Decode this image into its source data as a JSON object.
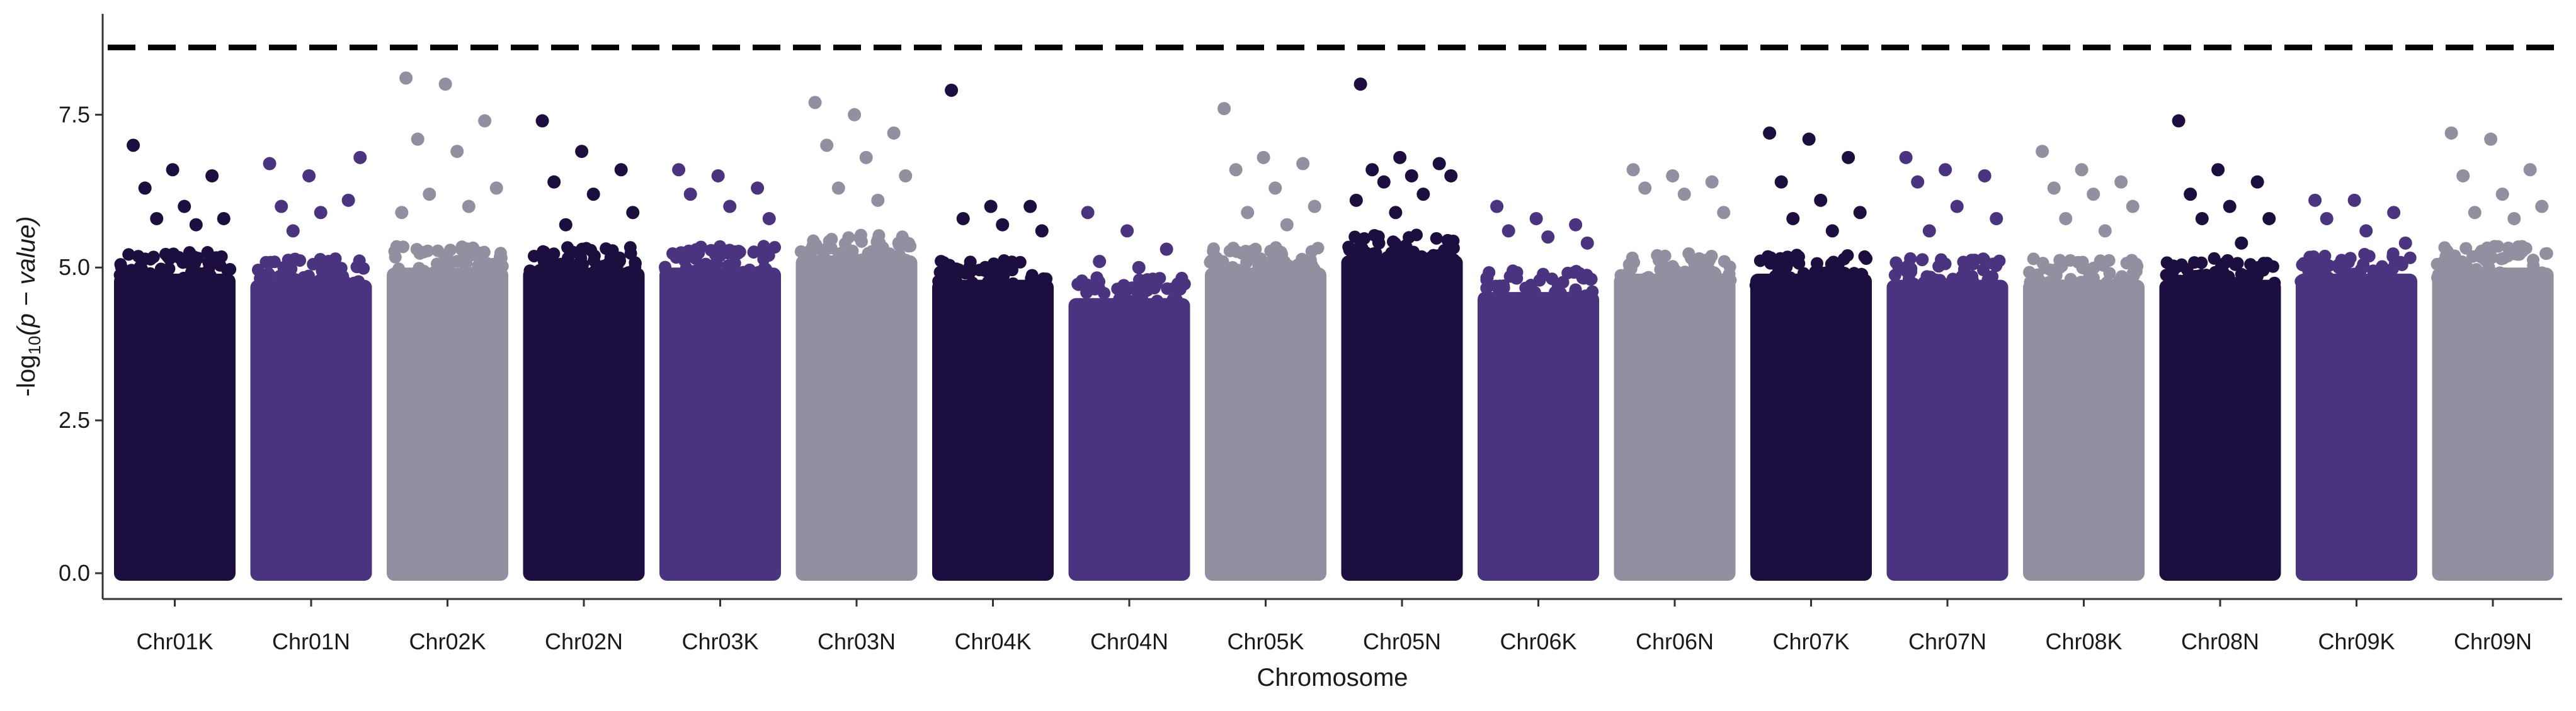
{
  "chart_data": {
    "type": "scatter",
    "subtype": "manhattan",
    "xlabel": "Chromosome",
    "ylabel_prefix": "-log",
    "ylabel_sub": "10",
    "ylabel_body": "(p − value)",
    "ylim": [
      0,
      8.8
    ],
    "yticks": [
      0.0,
      2.5,
      5.0,
      7.5
    ],
    "ytick_labels": [
      "0.0",
      "2.5",
      "5.0",
      "7.5"
    ],
    "threshold": 8.6,
    "threshold_style": "dashed",
    "grid": false,
    "legend": "none",
    "colors": [
      "#1c0e3f",
      "#4a3480",
      "#938fa0"
    ],
    "chromosomes": [
      {
        "name": "Chr01K",
        "color_index": 0,
        "top_points": [
          7.0,
          6.6,
          6.5,
          6.3,
          6.0,
          5.8,
          5.8,
          5.7
        ],
        "envelope": 4.9
      },
      {
        "name": "Chr01N",
        "color_index": 1,
        "top_points": [
          6.7,
          6.5,
          6.1,
          6.0,
          5.9,
          6.8,
          5.6
        ],
        "envelope": 4.8
      },
      {
        "name": "Chr02K",
        "color_index": 2,
        "top_points": [
          8.1,
          8.0,
          7.4,
          7.1,
          6.9,
          6.3,
          6.2,
          6.0,
          5.9
        ],
        "envelope": 5.0
      },
      {
        "name": "Chr02N",
        "color_index": 0,
        "top_points": [
          7.4,
          6.9,
          6.6,
          6.4,
          6.2,
          5.9,
          5.7
        ],
        "envelope": 5.0
      },
      {
        "name": "Chr03K",
        "color_index": 1,
        "top_points": [
          6.6,
          6.5,
          6.3,
          6.2,
          6.0,
          5.8
        ],
        "envelope": 5.0
      },
      {
        "name": "Chr03N",
        "color_index": 2,
        "top_points": [
          7.7,
          7.5,
          7.2,
          7.0,
          6.8,
          6.5,
          6.3,
          6.1
        ],
        "envelope": 5.2
      },
      {
        "name": "Chr04K",
        "color_index": 0,
        "top_points": [
          7.9,
          6.0,
          6.0,
          5.8,
          5.7,
          5.6
        ],
        "envelope": 4.8
      },
      {
        "name": "Chr04N",
        "color_index": 1,
        "top_points": [
          5.9,
          5.6,
          5.3,
          5.1,
          5.0
        ],
        "envelope": 4.5
      },
      {
        "name": "Chr05K",
        "color_index": 2,
        "top_points": [
          7.6,
          6.8,
          6.7,
          6.6,
          6.3,
          6.0,
          5.9,
          5.7
        ],
        "envelope": 5.0
      },
      {
        "name": "Chr05N",
        "color_index": 0,
        "top_points": [
          8.0,
          6.8,
          6.7,
          6.6,
          6.5,
          6.5,
          6.4,
          6.2,
          6.1,
          5.9
        ],
        "envelope": 5.2
      },
      {
        "name": "Chr06K",
        "color_index": 1,
        "top_points": [
          6.0,
          5.8,
          5.7,
          5.6,
          5.5,
          5.4
        ],
        "envelope": 4.6
      },
      {
        "name": "Chr06N",
        "color_index": 2,
        "top_points": [
          6.6,
          6.5,
          6.4,
          6.3,
          6.2,
          5.9
        ],
        "envelope": 4.9
      },
      {
        "name": "Chr07K",
        "color_index": 0,
        "top_points": [
          7.2,
          7.1,
          6.8,
          6.4,
          6.1,
          5.9,
          5.8,
          5.6
        ],
        "envelope": 4.9
      },
      {
        "name": "Chr07N",
        "color_index": 1,
        "top_points": [
          6.8,
          6.6,
          6.5,
          6.4,
          6.0,
          5.8,
          5.6
        ],
        "envelope": 4.8
      },
      {
        "name": "Chr08K",
        "color_index": 2,
        "top_points": [
          6.9,
          6.6,
          6.4,
          6.3,
          6.2,
          6.0,
          5.8,
          5.6
        ],
        "envelope": 4.8
      },
      {
        "name": "Chr08N",
        "color_index": 0,
        "top_points": [
          7.4,
          6.6,
          6.4,
          6.2,
          6.0,
          5.8,
          5.8,
          5.4
        ],
        "envelope": 4.8
      },
      {
        "name": "Chr09K",
        "color_index": 1,
        "top_points": [
          6.1,
          6.1,
          5.9,
          5.8,
          5.6,
          5.4
        ],
        "envelope": 4.9
      },
      {
        "name": "Chr09N",
        "color_index": 2,
        "top_points": [
          7.2,
          7.1,
          6.6,
          6.5,
          6.2,
          6.0,
          5.9,
          5.8
        ],
        "envelope": 5.0
      }
    ]
  }
}
